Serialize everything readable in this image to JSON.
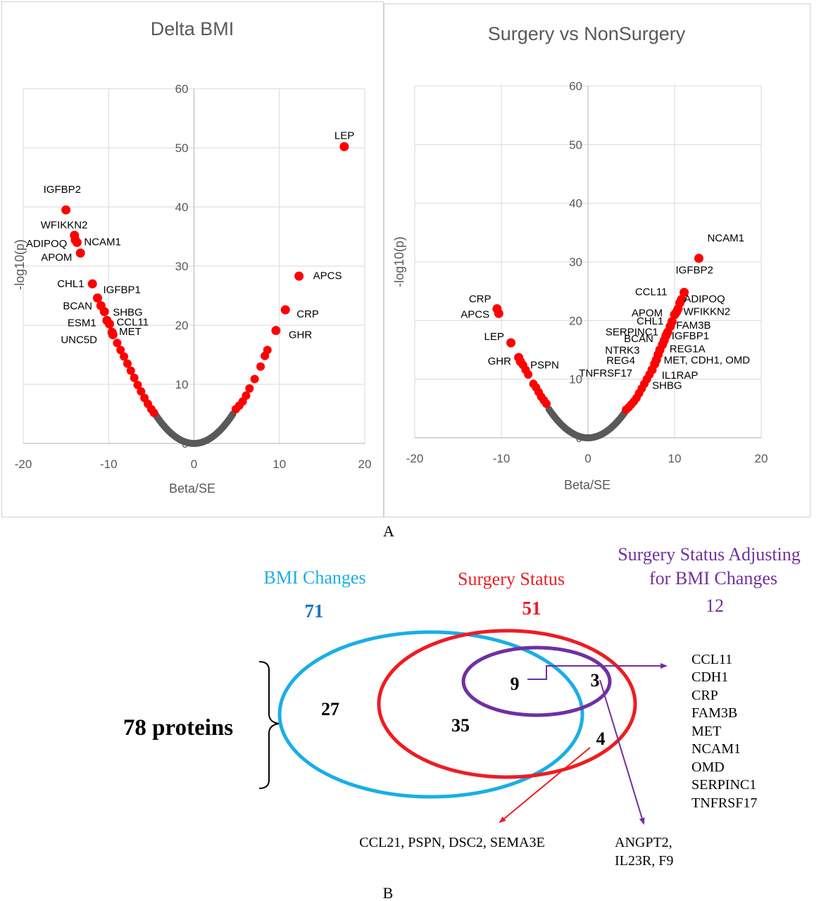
{
  "panel_a_label": "A",
  "panel_b_label": "B",
  "colors": {
    "significant": "#ff0000",
    "nonsignificant": "#595959",
    "gridline": "#d9d9d9",
    "bmi": "#1aaee6",
    "surgery": "#ee1c24",
    "adjusted": "#7030a0"
  },
  "chart_data": [
    {
      "type": "scatter",
      "title": "Delta BMI",
      "xlabel": "Beta/SE",
      "ylabel": "-log10(p)",
      "xlim": [
        -20,
        20
      ],
      "ylim": [
        0,
        60
      ],
      "xticks": [
        -20,
        -10,
        0,
        10,
        20
      ],
      "yticks": [
        0,
        10,
        20,
        30,
        40,
        50,
        60
      ],
      "grid": true,
      "legend": "none",
      "labeled_points": [
        {
          "name": "LEP",
          "x": 17.6,
          "y": 50.2
        },
        {
          "name": "IGFBP2",
          "x": -15.0,
          "y": 39.5
        },
        {
          "name": "WFIKKN2",
          "x": -14.0,
          "y": 35.2
        },
        {
          "name": "NCAM1",
          "x": -13.7,
          "y": 34.0
        },
        {
          "name": "ADIPOQ",
          "x": -13.9,
          "y": 34.4
        },
        {
          "name": "APOM",
          "x": -13.3,
          "y": 32.2
        },
        {
          "name": "APCS",
          "x": 12.3,
          "y": 28.3
        },
        {
          "name": "CHL1",
          "x": -11.9,
          "y": 27.0
        },
        {
          "name": "IGFBP1",
          "x": -11.3,
          "y": 24.6
        },
        {
          "name": "BCAN",
          "x": -10.9,
          "y": 23.3
        },
        {
          "name": "SHBG",
          "x": -10.5,
          "y": 22.3
        },
        {
          "name": "CRP",
          "x": 10.7,
          "y": 22.6
        },
        {
          "name": "ESM1",
          "x": -10.2,
          "y": 20.8
        },
        {
          "name": "CCL11",
          "x": -9.9,
          "y": 20.2
        },
        {
          "name": "MET",
          "x": -9.6,
          "y": 18.8
        },
        {
          "name": "UNC5D",
          "x": -9.5,
          "y": 18.4
        },
        {
          "name": "GHR",
          "x": 9.6,
          "y": 19.1
        }
      ],
      "other_significant": [
        [
          -9.0,
          17.0
        ],
        [
          -8.6,
          15.8
        ],
        [
          -8.2,
          14.7
        ],
        [
          -7.8,
          13.5
        ],
        [
          -7.4,
          12.3
        ],
        [
          -7.0,
          11.1
        ],
        [
          -6.6,
          9.9
        ],
        [
          -6.2,
          8.8
        ],
        [
          -5.8,
          7.7
        ],
        [
          -5.4,
          6.7
        ],
        [
          -5.0,
          5.8
        ],
        [
          -4.7,
          5.2
        ],
        [
          8.6,
          15.8
        ],
        [
          8.3,
          14.8
        ],
        [
          7.8,
          13.0
        ],
        [
          7.1,
          10.9
        ],
        [
          6.5,
          9.3
        ],
        [
          6.1,
          8.1
        ],
        [
          5.7,
          7.1
        ],
        [
          5.3,
          6.4
        ],
        [
          4.9,
          5.8
        ]
      ],
      "nonsignificant_curve": {
        "x_from": -4.6,
        "x_to": 4.6
      }
    },
    {
      "type": "scatter",
      "title": "Surgery vs NonSurgery",
      "xlabel": "Beta/SE",
      "ylabel": "-log10(p)",
      "xlim": [
        -20,
        20
      ],
      "ylim": [
        0,
        60
      ],
      "xticks": [
        -20,
        -10,
        0,
        10,
        20
      ],
      "yticks": [
        0,
        10,
        20,
        30,
        40,
        50,
        60
      ],
      "grid": true,
      "legend": "none",
      "labeled_points": [
        {
          "name": "NCAM1",
          "x": 12.8,
          "y": 30.6
        },
        {
          "name": "IGFBP2",
          "x": 11.1,
          "y": 24.8
        },
        {
          "name": "CCL11",
          "x": 10.8,
          "y": 23.6
        },
        {
          "name": "ADIPOQ",
          "x": 10.6,
          "y": 23.0
        },
        {
          "name": "APOM",
          "x": 10.4,
          "y": 22.0
        },
        {
          "name": "WFIKKN2",
          "x": 10.2,
          "y": 21.4
        },
        {
          "name": "CHL1",
          "x": 10.0,
          "y": 21.0
        },
        {
          "name": "FAM3B",
          "x": 9.7,
          "y": 19.8
        },
        {
          "name": "SERPINC1",
          "x": 9.5,
          "y": 19.0
        },
        {
          "name": "BCAN",
          "x": 9.2,
          "y": 18.0
        },
        {
          "name": "IGFBP1",
          "x": 9.0,
          "y": 17.4
        },
        {
          "name": "NTRK3",
          "x": 8.8,
          "y": 16.6
        },
        {
          "name": "REG1A",
          "x": 8.6,
          "y": 15.9
        },
        {
          "name": "REG4",
          "x": 8.3,
          "y": 15.0
        },
        {
          "name": "MET, CDH1, OMD",
          "x": 8.1,
          "y": 14.2
        },
        {
          "name": "TNFRSF17",
          "x": 7.9,
          "y": 13.3
        },
        {
          "name": "IL1RAP",
          "x": 7.7,
          "y": 12.6
        },
        {
          "name": "SHBG",
          "x": 7.4,
          "y": 11.6
        },
        {
          "name": "CRP",
          "x": -10.5,
          "y": 22.0
        },
        {
          "name": "APCS",
          "x": -10.3,
          "y": 21.2
        },
        {
          "name": "LEP",
          "x": -8.9,
          "y": 16.2
        },
        {
          "name": "GHR",
          "x": -8.0,
          "y": 13.7
        },
        {
          "name": "PSPN",
          "x": -7.8,
          "y": 13.0
        }
      ],
      "other_significant": [
        [
          -7.5,
          12.4
        ],
        [
          -7.2,
          11.6
        ],
        [
          -6.9,
          10.8
        ],
        [
          -6.3,
          9.2
        ],
        [
          -6.0,
          8.6
        ],
        [
          -5.7,
          7.8
        ],
        [
          -5.4,
          7.0
        ],
        [
          -5.1,
          6.4
        ],
        [
          -4.8,
          5.8
        ],
        [
          7.1,
          10.8
        ],
        [
          6.8,
          10.0
        ],
        [
          6.5,
          9.2
        ],
        [
          6.2,
          8.4
        ],
        [
          5.9,
          7.6
        ],
        [
          5.6,
          6.8
        ],
        [
          5.3,
          6.2
        ],
        [
          5.0,
          5.7
        ],
        [
          4.7,
          5.2
        ],
        [
          4.4,
          4.8
        ]
      ],
      "nonsignificant_curve": {
        "x_from": -4.5,
        "x_to": 4.3
      }
    }
  ],
  "venn": {
    "bmi": {
      "title": "BMI Changes",
      "count": "71"
    },
    "surgery": {
      "title": "Surgery Status",
      "count": "51"
    },
    "adjusted": {
      "title_line1": "Surgery Status Adjusting",
      "title_line2": "for BMI Changes",
      "count": "12"
    },
    "region_27": "27",
    "region_35": "35",
    "region_9": "9",
    "region_3": "3",
    "region_4": "4",
    "total_label": "78 proteins",
    "list_right": [
      "CCL11",
      "CDH1",
      "CRP",
      "FAM3B",
      "MET",
      "NCAM1",
      "OMD",
      "SERPINC1",
      "TNFRSF17"
    ],
    "list_bottom_middle": "CCL21,  PSPN, DSC2, SEMA3E",
    "list_bottom_right_line1": "ANGPT2,",
    "list_bottom_right_line2": "IL23R,  F9"
  }
}
